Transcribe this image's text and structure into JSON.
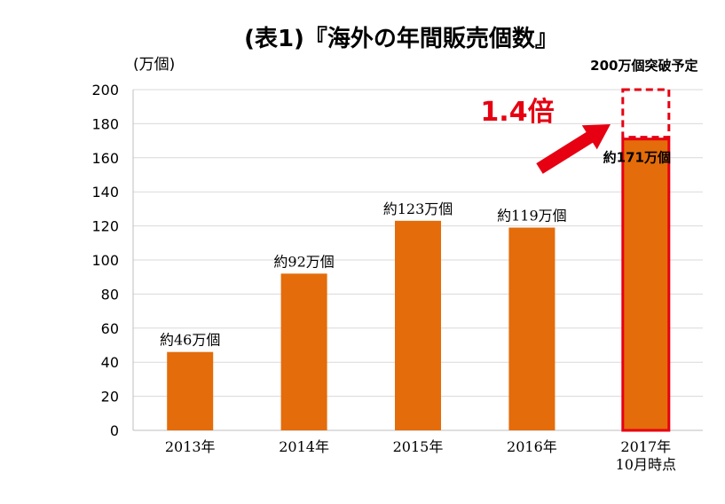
{
  "chart_data": {
    "type": "bar",
    "title": "(表1)『海外の年間販売個数』",
    "ylabel": "(万個)",
    "ylim": [
      0,
      200
    ],
    "yticks": [
      0,
      20,
      40,
      60,
      80,
      100,
      120,
      140,
      160,
      180,
      200
    ],
    "grid": true,
    "categories": [
      [
        "2013年"
      ],
      [
        "2014年"
      ],
      [
        "2015年"
      ],
      [
        "2016年"
      ],
      [
        "2017年",
        "10月時点"
      ]
    ],
    "values": [
      46,
      92,
      123,
      119,
      171
    ],
    "data_labels": [
      "約46万個",
      "約92万個",
      "約123万個",
      "約119万個",
      "約171万個"
    ],
    "projection": {
      "value": 200,
      "label": "200万個突破予定"
    },
    "multiplier": "1.4倍",
    "colors": {
      "bar": "#e46c0a",
      "highlight": "#e60012",
      "grid": "#d9d9d9"
    }
  }
}
